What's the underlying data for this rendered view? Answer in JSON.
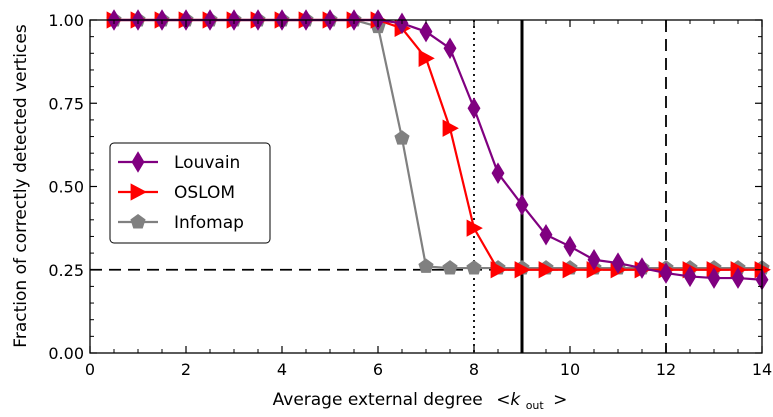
{
  "chart_data": {
    "type": "line",
    "xlabel": "Average external degree",
    "xlabel_math": "<k",
    "xlabel_sub": "out",
    "xlabel_close": ">",
    "ylabel": "Fraction of correctly detected vertices",
    "xlim": [
      0,
      14
    ],
    "ylim": [
      0,
      1
    ],
    "xticks": [
      0,
      2,
      4,
      6,
      8,
      10,
      12,
      14
    ],
    "xtick_labels": [
      "0",
      "2",
      "4",
      "6",
      "8",
      "10",
      "12",
      "14"
    ],
    "yticks": [
      0,
      0.25,
      0.5,
      0.75,
      1.0
    ],
    "ytick_labels": [
      "0.00",
      "0.25",
      "0.50",
      "0.75",
      "1.00"
    ],
    "grid": false,
    "legend_position": "center-left",
    "x": [
      0.5,
      1,
      1.5,
      2,
      2.5,
      3,
      3.5,
      4,
      4.5,
      5,
      5.5,
      6,
      6.5,
      7,
      7.5,
      8,
      8.5,
      9,
      9.5,
      10,
      10.5,
      11,
      11.5,
      12,
      12.5,
      13,
      13.5,
      14
    ],
    "series": [
      {
        "name": "Louvain",
        "color": "#800080",
        "marker": "diamond",
        "values": [
          1,
          1,
          1,
          1,
          1,
          1,
          1,
          1,
          1,
          1,
          1,
          1,
          0.99,
          0.965,
          0.915,
          0.735,
          0.54,
          0.445,
          0.355,
          0.32,
          0.28,
          0.27,
          0.255,
          0.24,
          0.23,
          0.225,
          0.225,
          0.22
        ]
      },
      {
        "name": "OSLOM",
        "color": "#ff0000",
        "marker": "triangle-right",
        "values": [
          1,
          1,
          1,
          1,
          1,
          1,
          1,
          1,
          1,
          1,
          1,
          1,
          0.975,
          0.885,
          0.675,
          0.375,
          0.25,
          0.25,
          0.25,
          0.25,
          0.25,
          0.25,
          0.25,
          0.25,
          0.25,
          0.25,
          0.25,
          0.25
        ]
      },
      {
        "name": "Infomap",
        "color": "#808080",
        "marker": "pentagon",
        "values": [
          1,
          1,
          1,
          1,
          1,
          1,
          1,
          1,
          1,
          1,
          1,
          0.98,
          0.645,
          0.26,
          0.255,
          0.255,
          0.255,
          0.255,
          0.255,
          0.255,
          0.255,
          0.255,
          0.255,
          0.255,
          0.255,
          0.255,
          0.255,
          0.255
        ]
      }
    ],
    "reference_lines": [
      {
        "orientation": "horizontal",
        "value": 0.25,
        "style": "dashed",
        "color": "#000000"
      },
      {
        "orientation": "vertical",
        "value": 8,
        "style": "dotted",
        "color": "#000000"
      },
      {
        "orientation": "vertical",
        "value": 9,
        "style": "solid",
        "color": "#000000"
      },
      {
        "orientation": "vertical",
        "value": 12,
        "style": "dashed",
        "color": "#000000"
      }
    ]
  }
}
